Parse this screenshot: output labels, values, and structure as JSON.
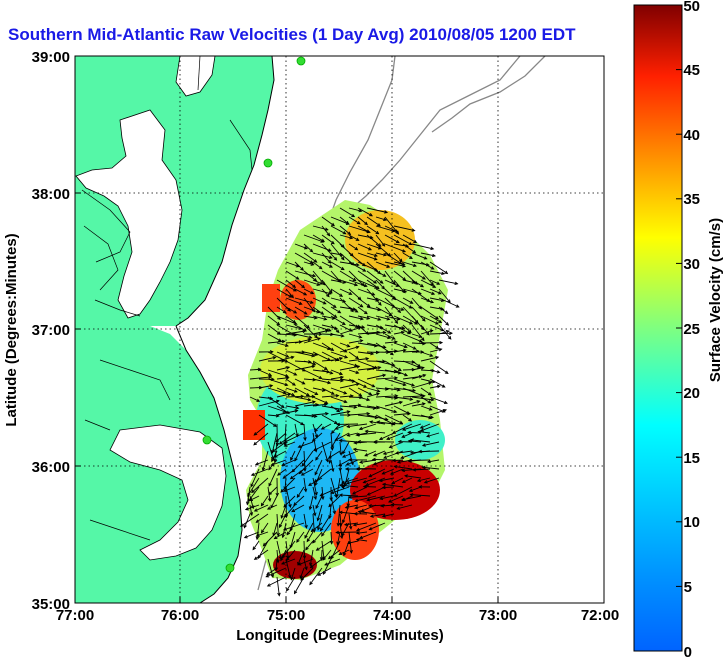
{
  "map": {
    "title": "Southern Mid-Atlantic Raw Velocities (1 Day Avg) 2010/08/05 1200 EDT",
    "x_axis_label": "Longitude (Degrees:Minutes)",
    "y_axis_label": "Latitude (Degrees:Minutes)",
    "x_tick_labels": [
      "77:00",
      "76:00",
      "75:00",
      "74:00",
      "73:00",
      "72:00"
    ],
    "y_tick_labels": [
      "39:00",
      "38:00",
      "37:00",
      "36:00",
      "35:00"
    ],
    "x_range_deg": [
      -77,
      -72
    ],
    "y_range_deg": [
      35,
      39
    ],
    "grid": true,
    "colors": {
      "land": "#55f7a7",
      "coast_line": "#000000",
      "bathymetry_contour": "#888888",
      "title": "#1a1ae6",
      "vectors": "#000000",
      "station_marker": "#33dd33"
    }
  },
  "colorbar": {
    "label": "Surface Velocity (cm/s)",
    "tick_labels": [
      "0",
      "5",
      "10",
      "15",
      "20",
      "25",
      "30",
      "35",
      "40",
      "45",
      "50"
    ],
    "range": [
      0,
      50
    ],
    "colormap": "jet"
  }
}
